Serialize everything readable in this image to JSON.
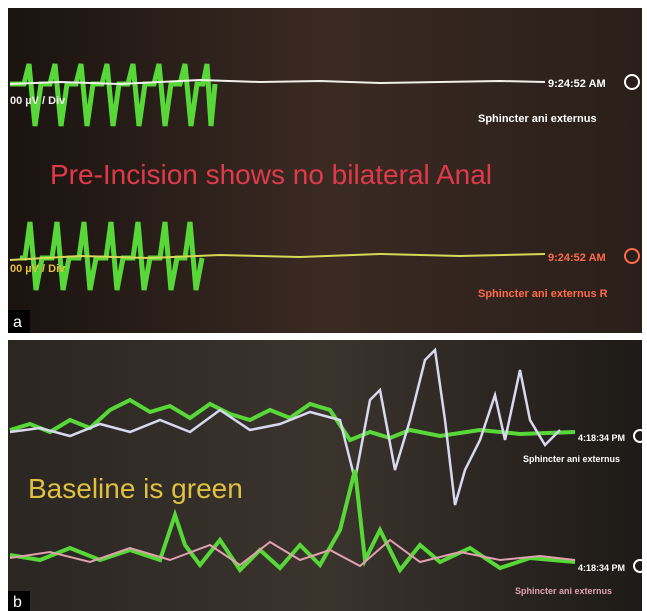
{
  "panel_a": {
    "scale_top": "00 µV / Div",
    "time_top": "9:24:52 AM",
    "channel_top": "Sphincter ani externus",
    "caption": "Pre-Incision shows no bilateral Anal",
    "scale_bottom": "00 µV / Div",
    "time_bottom": "9:24:52 AM",
    "channel_bottom": "Sphincter ani externus R",
    "label": "a"
  },
  "panel_b": {
    "caption": "Baseline is green",
    "time_top": "4:18:34 PM",
    "channel_top": "Sphincter ani externus",
    "time_bottom": "4:18:34 PM",
    "channel_bottom": "Sphincter ani externus",
    "label": "b"
  }
}
